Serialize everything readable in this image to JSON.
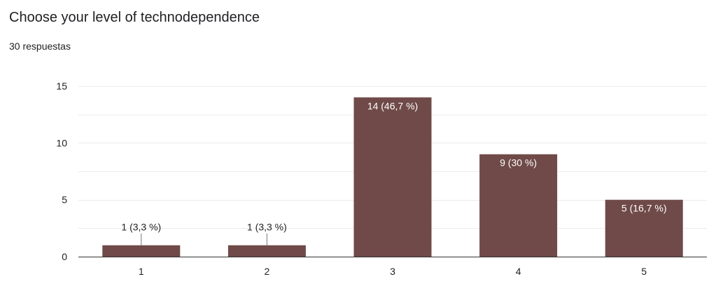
{
  "title": "Choose your level of technodependence",
  "response_count": "30 respuestas",
  "colors": {
    "bar": "#6f4a48",
    "grid": "#ebebeb",
    "baseline": "#333333",
    "label_inside": "#ffffff",
    "label_outside": "#222222"
  },
  "chart_data": {
    "type": "bar",
    "title": "Choose your level of technodependence",
    "xlabel": "",
    "ylabel": "",
    "categories": [
      "1",
      "2",
      "3",
      "4",
      "5"
    ],
    "values": [
      1,
      1,
      14,
      9,
      5
    ],
    "data_labels": [
      "1 (3,3 %)",
      "1 (3,3 %)",
      "14 (46,7 %)",
      "9 (30 %)",
      "5 (16,7 %)"
    ],
    "ylim": [
      0,
      15
    ],
    "yticks": [
      0,
      5,
      10,
      15
    ],
    "grid": true,
    "legend": "none"
  }
}
